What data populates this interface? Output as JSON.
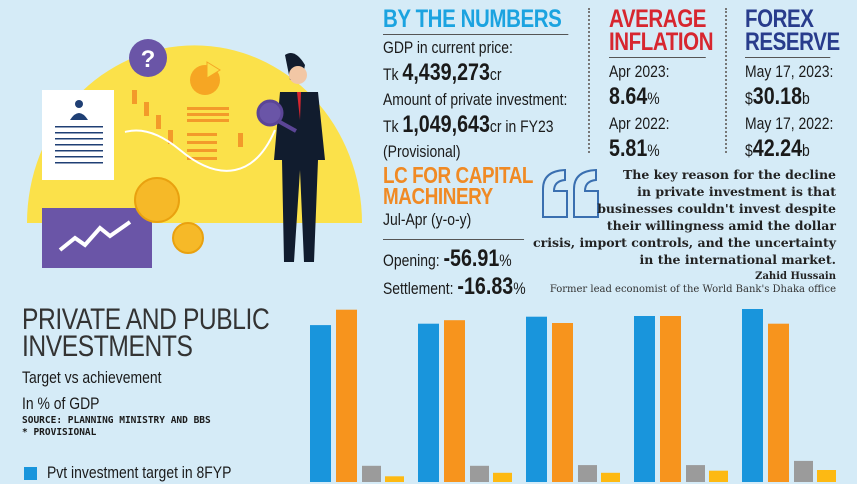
{
  "by_numbers": {
    "title": "BY THE NUMBERS",
    "gdp_label": "GDP in current price:",
    "gdp_prefix": "Tk",
    "gdp_value": "4,439,273",
    "gdp_unit": "cr",
    "pvt_label": "Amount of private investment:",
    "pvt_prefix": "Tk",
    "pvt_value": "1,049,643",
    "pvt_suffix": "cr in FY23",
    "pvt_note": "(Provisional)"
  },
  "inflation": {
    "title1": "AVERAGE",
    "title2": "INFLATION",
    "d1": "Apr 2023:",
    "v1": "8.64",
    "u1": "%",
    "d2": "Apr 2022:",
    "v2": "5.81",
    "u2": "%"
  },
  "forex": {
    "title1": "FOREX",
    "title2": "RESERVE",
    "d1": "May 17, 2023:",
    "p1": "$",
    "v1": "30.18",
    "u1": "b",
    "d2": "May 17, 2022:",
    "p2": "$",
    "v2": "42.24",
    "u2": "b"
  },
  "lc": {
    "title1": "LC FOR CAPITAL",
    "title2": "MACHINERY",
    "period": "Jul-Apr (y-o-y)",
    "opening_label": "Opening:",
    "opening_value": "-56.91",
    "opening_unit": "%",
    "settlement_label": "Settlement:",
    "settlement_value": "-16.83",
    "settlement_unit": "%"
  },
  "quote": {
    "lines": [
      "The key reason for the decline",
      "in private investment is that",
      "businesses couldn't invest despite",
      "their willingness amid the dollar",
      "crisis, import controls, and the uncertainty",
      "in the international market."
    ],
    "author": "Zahid Hussain",
    "role": "Former lead economist of the World Bank's Dhaka office"
  },
  "colors": {
    "blue_title": "#1ba3e0",
    "red_title": "#d7262f",
    "navy_title": "#283c8c",
    "orange_title": "#f08a24"
  },
  "chart_data": {
    "type": "bar",
    "title": "PRIVATE AND PUBLIC INVESTMENTS",
    "subtitle": "Target vs achievement",
    "unit_label": "In % of GDP",
    "source": "SOURCE: PLANNING MINISTRY AND BBS",
    "note": "* PROVISIONAL",
    "grid": false,
    "legend_visible": [
      "Pvt investment target in 8FYP"
    ],
    "series": [
      {
        "name": "Pvt investment target in 8FYP",
        "color": "#1995dc",
        "values": [
          26.7,
          26.9,
          27.9,
          28.0,
          29.0
        ]
      },
      {
        "color": "#f7941d",
        "values": [
          28.9,
          27.4,
          27.0,
          28.0,
          26.9
        ]
      },
      {
        "color": "#9b9b9b",
        "values": [
          6.6,
          6.6,
          6.7,
          6.7,
          7.3
        ]
      },
      {
        "color": "#fdb913",
        "values": [
          5.1,
          5.6,
          5.6,
          5.9,
          6.0
        ]
      }
    ]
  }
}
